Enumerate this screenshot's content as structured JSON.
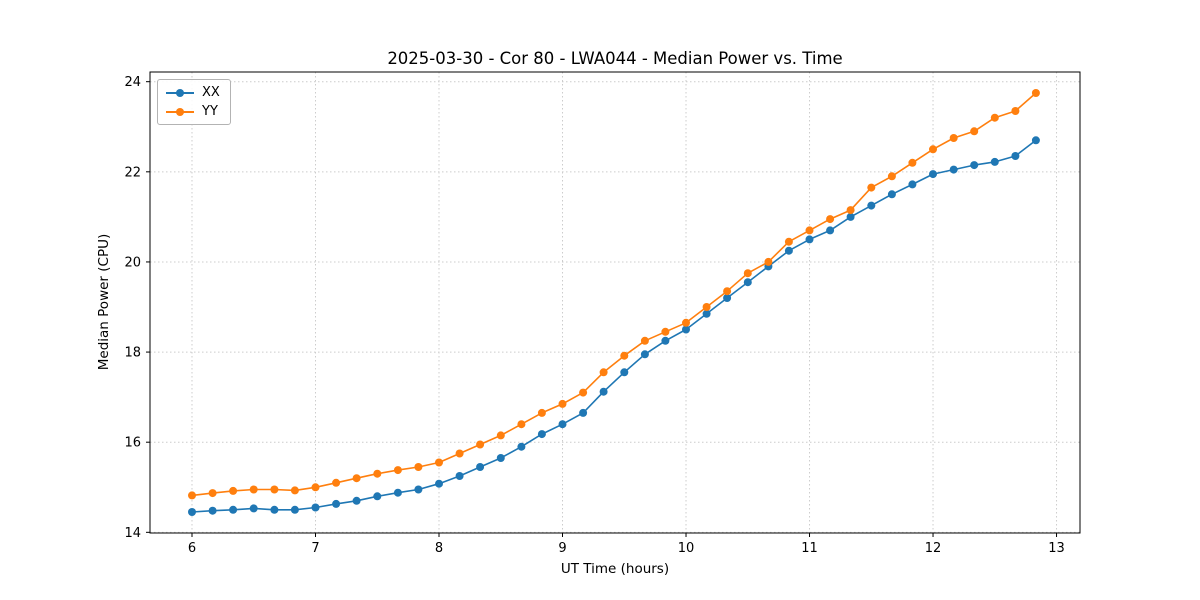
{
  "figure": {
    "background": "#ffffff"
  },
  "chart_data": {
    "type": "line",
    "title": "2025-03-30 - Cor 80 - LWA044 - Median Power vs. Time",
    "xlabel": "UT Time (hours)",
    "ylabel": "Median Power (CPU)",
    "x": [
      6.0,
      6.167,
      6.333,
      6.5,
      6.667,
      6.833,
      7.0,
      7.167,
      7.333,
      7.5,
      7.667,
      7.833,
      8.0,
      8.167,
      8.333,
      8.5,
      8.667,
      8.833,
      9.0,
      9.167,
      9.333,
      9.5,
      9.667,
      9.833,
      10.0,
      10.167,
      10.333,
      10.5,
      10.667,
      10.833,
      11.0,
      11.167,
      11.333,
      11.5,
      11.667,
      11.833,
      12.0,
      12.167,
      12.333,
      12.5,
      12.667,
      12.833
    ],
    "series": [
      {
        "name": "XX",
        "color": "#1f77b4",
        "values": [
          14.45,
          14.48,
          14.5,
          14.53,
          14.5,
          14.5,
          14.55,
          14.63,
          14.7,
          14.8,
          14.88,
          14.95,
          15.08,
          15.25,
          15.45,
          15.65,
          15.9,
          16.18,
          16.4,
          16.65,
          17.12,
          17.55,
          17.95,
          18.25,
          18.5,
          18.85,
          19.2,
          19.55,
          19.9,
          20.25,
          20.5,
          20.7,
          21.0,
          21.25,
          21.5,
          21.72,
          21.95,
          22.05,
          22.15,
          22.22,
          22.35,
          22.7
        ]
      },
      {
        "name": "YY",
        "color": "#ff7f0e",
        "values": [
          14.82,
          14.87,
          14.92,
          14.95,
          14.95,
          14.93,
          15.0,
          15.1,
          15.2,
          15.3,
          15.38,
          15.45,
          15.55,
          15.75,
          15.95,
          16.15,
          16.4,
          16.65,
          16.85,
          17.1,
          17.55,
          17.92,
          18.25,
          18.45,
          18.65,
          19.0,
          19.35,
          19.75,
          20.0,
          20.45,
          20.7,
          20.95,
          21.15,
          21.65,
          21.9,
          22.2,
          22.5,
          22.75,
          22.9,
          23.2,
          23.35,
          23.75
        ]
      }
    ],
    "xlim": [
      5.66,
      13.19
    ],
    "ylim": [
      13.985,
      24.215
    ],
    "xticks": [
      6,
      7,
      8,
      9,
      10,
      11,
      12,
      13
    ],
    "yticks": [
      14,
      16,
      18,
      20,
      22,
      24
    ],
    "grid": true,
    "legend_position": "upper left",
    "marker": "circle",
    "styles": {
      "grid_color": "#cccccc",
      "spine_color": "#000000",
      "tick_label_size": 13,
      "line_width": 1.6,
      "marker_radius": 4
    }
  }
}
